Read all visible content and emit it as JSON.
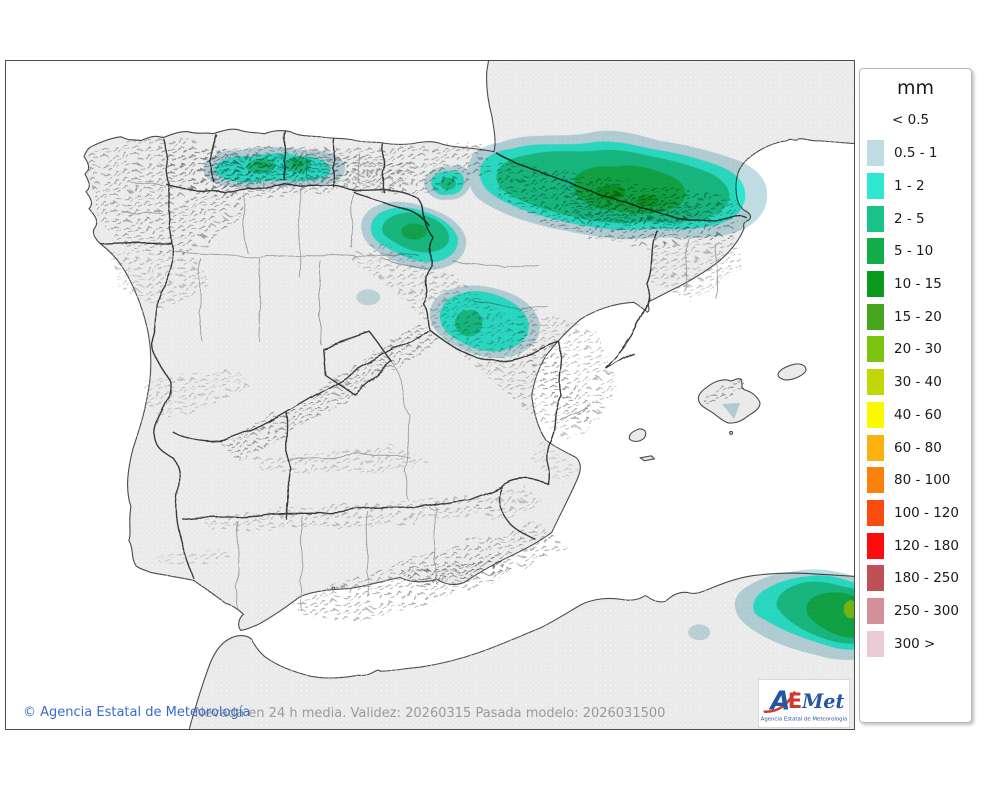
{
  "page": {
    "background": "#ffffff"
  },
  "map": {
    "frame_color": "#4c4c4c",
    "sea_color": "#ffffff",
    "land_color": "#eaeaea",
    "coast_color": "#4a4a4a",
    "region_border_color": "#3b3b3b",
    "province_border_color": "#9c9c9c",
    "footer": {
      "copyright": "© Agencia Estatal de Meteorología",
      "copyright_color": "#3a6bc8",
      "caption": "Nevada en 24 h media. Validez: 20260315 Pasada modelo: 2026031500",
      "caption_color": "#9a9a9a"
    },
    "logo": {
      "part_a": "A",
      "part_e": "E",
      "part_met": "Met",
      "caption": "Agencia Estatal de Meteorología",
      "blue": "#2456a4",
      "red": "#d03a2b"
    }
  },
  "legend": {
    "title": "mm",
    "first_label": "< 0.5",
    "items": [
      {
        "label": "0.5 - 1",
        "color": "#BFDCE3"
      },
      {
        "label": "1 - 2",
        "color": "#2DE8CF"
      },
      {
        "label": "2 - 5",
        "color": "#1AC489"
      },
      {
        "label": "5 - 10",
        "color": "#12AD49"
      },
      {
        "label": "10 - 15",
        "color": "#0A9B1E"
      },
      {
        "label": "15 - 20",
        "color": "#46A51E"
      },
      {
        "label": "20 - 30",
        "color": "#7DC312"
      },
      {
        "label": "30 - 40",
        "color": "#C1D706"
      },
      {
        "label": "40 - 60",
        "color": "#FBF900"
      },
      {
        "label": "60 - 80",
        "color": "#FBB110"
      },
      {
        "label": "80 - 100",
        "color": "#F8820A"
      },
      {
        "label": "100 - 120",
        "color": "#F94D10"
      },
      {
        "label": "120 - 180",
        "color": "#FB0D0D"
      },
      {
        "label": "180 - 250",
        "color": "#BF5058"
      },
      {
        "label": "250 - 300",
        "color": "#D3909A"
      },
      {
        "label": "300 >",
        "color": "#EBCCD4"
      }
    ]
  }
}
